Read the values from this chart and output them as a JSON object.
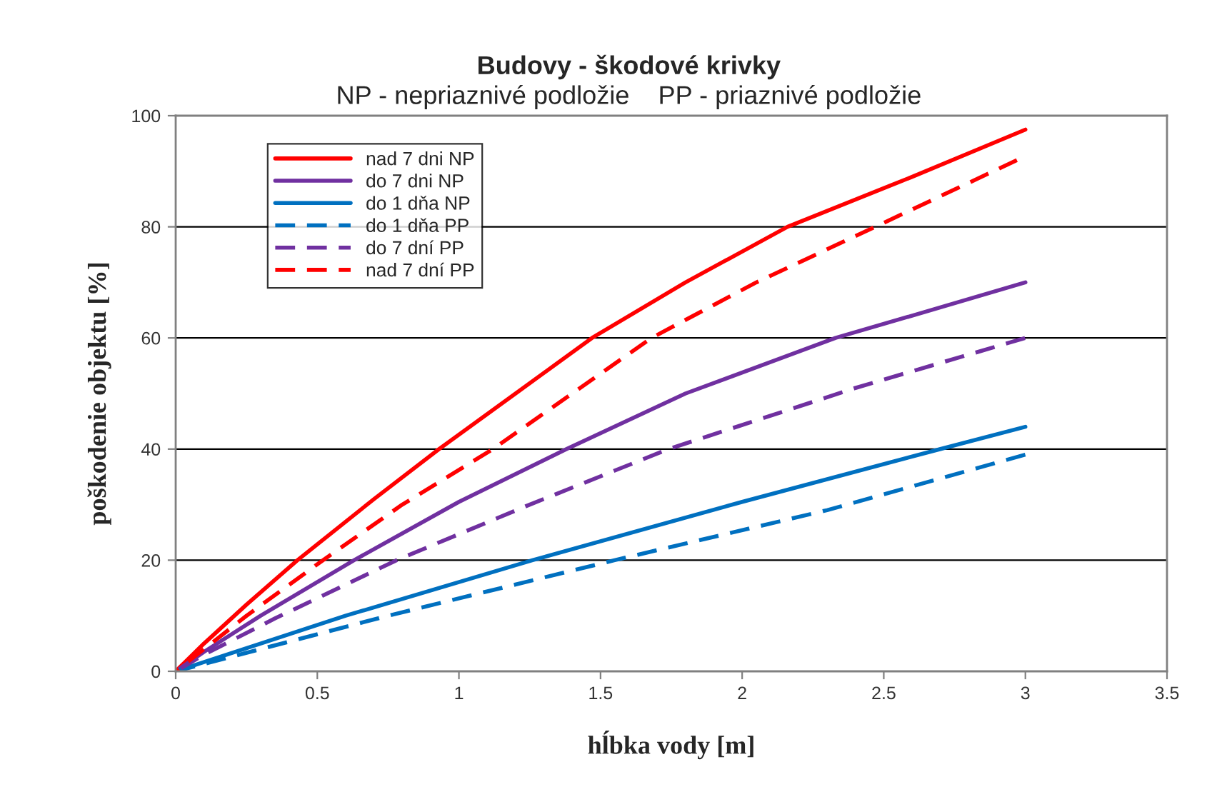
{
  "chart_data": {
    "type": "line",
    "title": "Budovy - škodové krivky",
    "subtitle": "NP - nepriaznivé podložie    PP - priaznivé podložie",
    "xlabel": "hĺbka vody [m]",
    "ylabel": "poškodenie objektu [%]",
    "series": [
      {
        "name": "nad 7 dni NP",
        "color": "#ff0000",
        "line_style": "solid",
        "x": [
          0,
          0.1,
          0.25,
          0.43,
          0.7,
          0.93,
          1.2,
          1.47,
          1.8,
          2.16,
          2.6,
          3
        ],
        "values": [
          0,
          5,
          12,
          20,
          31,
          40,
          50,
          60,
          70,
          80,
          89,
          97.5
        ]
      },
      {
        "name": "do 7 dni NP",
        "color": "#7030a0",
        "line_style": "solid",
        "x": [
          0,
          0.1,
          0.3,
          0.63,
          1.0,
          1.38,
          1.8,
          2.33,
          2.7,
          3
        ],
        "values": [
          0,
          3.5,
          10,
          20,
          30.5,
          40,
          50,
          60,
          65.5,
          70
        ]
      },
      {
        "name": "do 1 dňa NP",
        "color": "#0070c0",
        "line_style": "solid",
        "x": [
          0,
          0.3,
          0.6,
          1.26,
          2.0,
          2.7,
          3
        ],
        "values": [
          0,
          5,
          10,
          20,
          30.5,
          40,
          44
        ]
      },
      {
        "name": "do 1 dňa PP",
        "color": "#0070c0",
        "line_style": "dashed",
        "x": [
          0,
          0.3,
          0.75,
          1.55,
          2.3,
          3
        ],
        "values": [
          0,
          4,
          10,
          20,
          29,
          39
        ]
      },
      {
        "name": "do 7 dní PP",
        "color": "#7030a0",
        "line_style": "dashed",
        "x": [
          0,
          0.1,
          0.35,
          0.78,
          1.25,
          1.74,
          2.4,
          3
        ],
        "values": [
          0,
          3,
          9.5,
          20,
          30,
          40,
          51,
          60
        ]
      },
      {
        "name": "nad 7 dní PP",
        "color": "#ff0000",
        "line_style": "dashed",
        "x": [
          0,
          0.1,
          0.25,
          0.52,
          0.8,
          1.12,
          1.4,
          1.68,
          2.05,
          2.47,
          2.97
        ],
        "values": [
          0,
          4,
          10,
          20,
          30,
          40,
          50,
          60,
          70,
          80,
          92
        ]
      }
    ],
    "xlim": [
      0,
      3.5
    ],
    "xticks": [
      0,
      0.5,
      1,
      1.5,
      2,
      2.5,
      3,
      3.5
    ],
    "ylim": [
      0,
      100
    ],
    "yticks": [
      0,
      20,
      40,
      60,
      80,
      100
    ],
    "grid": "y",
    "legend": "top left",
    "marker": "none"
  }
}
